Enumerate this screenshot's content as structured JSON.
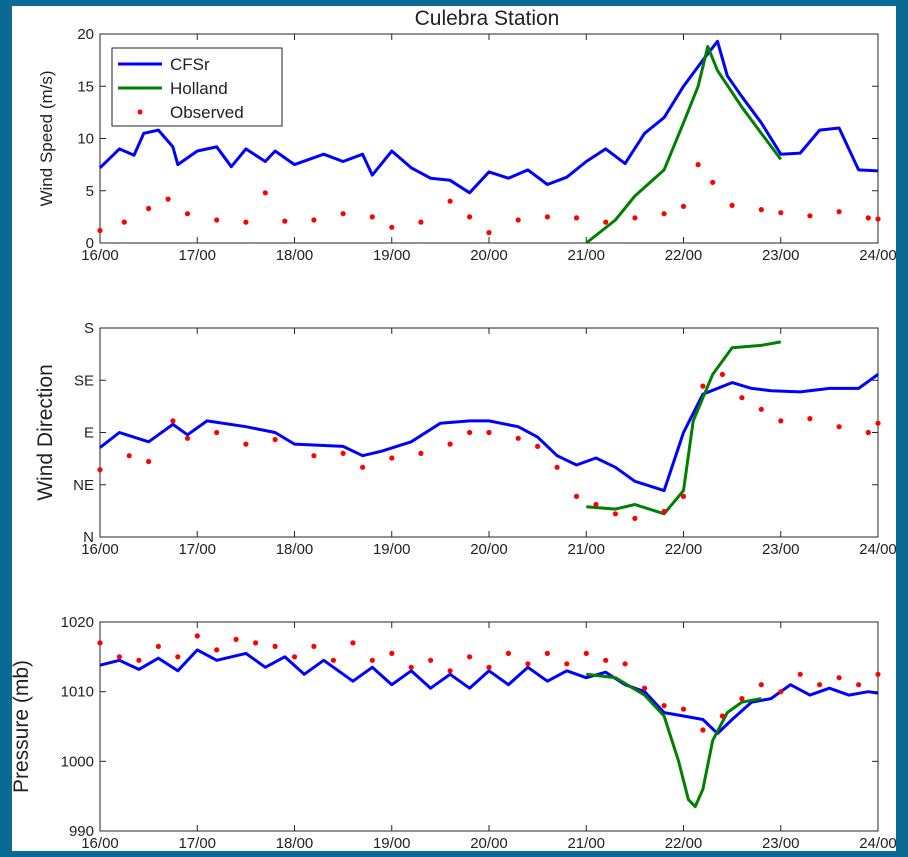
{
  "figure": {
    "title": "Culebra Station",
    "legend": [
      {
        "label": "CFSr",
        "color": "#0000ff",
        "style": "line"
      },
      {
        "label": "Holland",
        "color": "#007f00",
        "style": "line"
      },
      {
        "label": "Observed",
        "color": "#ff0000",
        "style": "dots"
      }
    ],
    "colors": {
      "cfsr": "#0000ff",
      "holland": "#007f00",
      "observed": "#ff0000",
      "background": "#0a6a94"
    }
  },
  "chart_data": [
    {
      "type": "line",
      "title": "Culebra Station",
      "ylabel": "Wind Speed (m/s)",
      "xlim": [
        16,
        24
      ],
      "ylim": [
        0,
        20
      ],
      "xticks": [
        "16/00",
        "17/00",
        "18/00",
        "19/00",
        "20/00",
        "21/00",
        "22/00",
        "23/00",
        "24/00"
      ],
      "yticks": [
        "0",
        "5",
        "10",
        "15",
        "20"
      ],
      "legend_position": "top-left",
      "series": [
        {
          "name": "CFSr",
          "style": "line",
          "x": [
            16.0,
            16.2,
            16.35,
            16.45,
            16.6,
            16.75,
            16.8,
            17.0,
            17.2,
            17.35,
            17.5,
            17.7,
            17.8,
            18.0,
            18.3,
            18.5,
            18.7,
            18.8,
            19.0,
            19.2,
            19.4,
            19.6,
            19.8,
            20.0,
            20.2,
            20.4,
            20.6,
            20.8,
            21.0,
            21.2,
            21.4,
            21.6,
            21.8,
            22.0,
            22.2,
            22.35,
            22.45,
            22.6,
            22.8,
            23.0,
            23.2,
            23.4,
            23.6,
            23.8,
            24.0
          ],
          "y": [
            7.2,
            9.0,
            8.4,
            10.5,
            10.8,
            9.2,
            7.5,
            8.8,
            9.2,
            7.3,
            9.0,
            7.8,
            8.8,
            7.5,
            8.5,
            7.8,
            8.5,
            6.5,
            8.8,
            7.2,
            6.2,
            6.0,
            4.8,
            6.8,
            6.2,
            7.0,
            5.6,
            6.3,
            7.8,
            9.0,
            7.6,
            10.5,
            12.0,
            15.0,
            17.5,
            19.3,
            16.0,
            14.0,
            11.5,
            8.5,
            8.6,
            10.8,
            11.0,
            7.0,
            6.9
          ]
        },
        {
          "name": "Holland",
          "style": "line",
          "x": [
            21.0,
            21.3,
            21.5,
            21.8,
            22.0,
            22.15,
            22.25,
            22.35,
            22.6,
            22.8,
            23.0
          ],
          "y": [
            0.0,
            2.2,
            4.5,
            7.0,
            11.5,
            15.0,
            18.8,
            16.5,
            13.0,
            10.5,
            8.0
          ]
        },
        {
          "name": "Observed",
          "style": "dots",
          "x": [
            16.0,
            16.25,
            16.5,
            16.7,
            16.9,
            17.2,
            17.5,
            17.7,
            17.9,
            18.2,
            18.5,
            18.8,
            19.0,
            19.3,
            19.6,
            19.8,
            20.0,
            20.3,
            20.6,
            20.9,
            21.2,
            21.5,
            21.8,
            22.0,
            22.15,
            22.3,
            22.5,
            22.8,
            23.0,
            23.3,
            23.6,
            23.9,
            24.0
          ],
          "y": [
            1.2,
            2.0,
            3.3,
            4.2,
            2.8,
            2.2,
            2.0,
            4.8,
            2.1,
            2.2,
            2.8,
            2.5,
            1.5,
            2.0,
            4.0,
            2.5,
            1.0,
            2.2,
            2.5,
            2.4,
            2.0,
            2.4,
            2.8,
            3.5,
            7.5,
            5.8,
            3.6,
            3.2,
            2.9,
            2.6,
            3.0,
            2.4,
            2.3
          ]
        }
      ]
    },
    {
      "type": "line",
      "ylabel": "Wind Direction",
      "xlim": [
        16,
        24
      ],
      "ylim": [
        0,
        180
      ],
      "xticks": [
        "16/00",
        "17/00",
        "18/00",
        "19/00",
        "20/00",
        "21/00",
        "22/00",
        "23/00",
        "24/00"
      ],
      "yticks": [
        "N",
        "NE",
        "E",
        "SE",
        "S"
      ],
      "ytick_values": [
        0,
        45,
        90,
        135,
        180
      ],
      "series": [
        {
          "name": "CFSr",
          "style": "line",
          "x": [
            16.0,
            16.2,
            16.5,
            16.75,
            16.9,
            17.1,
            17.5,
            17.8,
            18.0,
            18.5,
            18.7,
            18.9,
            19.2,
            19.5,
            19.8,
            20.0,
            20.3,
            20.5,
            20.7,
            20.9,
            21.1,
            21.3,
            21.5,
            21.8,
            22.0,
            22.2,
            22.5,
            22.7,
            22.9,
            23.2,
            23.5,
            23.8,
            24.0
          ],
          "y": [
            77,
            90,
            82,
            97,
            88,
            100,
            95,
            90,
            80,
            78,
            70,
            74,
            82,
            98,
            100,
            100,
            95,
            86,
            70,
            62,
            68,
            60,
            48,
            40,
            90,
            123,
            133,
            128,
            126,
            125,
            128,
            128,
            140
          ]
        },
        {
          "name": "Holland",
          "style": "line",
          "x": [
            21.0,
            21.3,
            21.5,
            21.8,
            22.0,
            22.1,
            22.3,
            22.5,
            22.8,
            23.0
          ],
          "y": [
            26,
            24,
            28,
            20,
            40,
            100,
            140,
            163,
            165,
            168
          ]
        },
        {
          "name": "Observed",
          "style": "dots",
          "x": [
            16.0,
            16.3,
            16.5,
            16.75,
            16.9,
            17.2,
            17.5,
            17.8,
            18.2,
            18.5,
            18.7,
            19.0,
            19.3,
            19.6,
            19.8,
            20.0,
            20.3,
            20.5,
            20.7,
            20.9,
            21.1,
            21.3,
            21.5,
            21.8,
            22.0,
            22.2,
            22.4,
            22.6,
            22.8,
            23.0,
            23.3,
            23.6,
            23.9,
            24.0
          ],
          "y": [
            58,
            70,
            65,
            100,
            85,
            90,
            80,
            84,
            70,
            72,
            60,
            68,
            72,
            80,
            90,
            90,
            85,
            78,
            60,
            35,
            28,
            20,
            16,
            22,
            35,
            130,
            140,
            120,
            110,
            100,
            102,
            95,
            90,
            98
          ]
        }
      ]
    },
    {
      "type": "line",
      "ylabel": "Pressure (mb)",
      "xlim": [
        16,
        24
      ],
      "ylim": [
        990,
        1020
      ],
      "xticks": [
        "16/00",
        "17/00",
        "18/00",
        "19/00",
        "20/00",
        "21/00",
        "22/00",
        "23/00",
        "24/00"
      ],
      "yticks": [
        "990",
        "1000",
        "1010",
        "1020"
      ],
      "series": [
        {
          "name": "CFSr",
          "style": "line",
          "x": [
            16.0,
            16.2,
            16.4,
            16.6,
            16.8,
            17.0,
            17.2,
            17.5,
            17.7,
            17.9,
            18.1,
            18.3,
            18.6,
            18.8,
            19.0,
            19.2,
            19.4,
            19.6,
            19.8,
            20.0,
            20.2,
            20.4,
            20.6,
            20.8,
            21.0,
            21.2,
            21.4,
            21.6,
            21.8,
            22.0,
            22.2,
            22.35,
            22.5,
            22.7,
            22.9,
            23.1,
            23.3,
            23.5,
            23.7,
            23.9,
            24.0
          ],
          "y": [
            1013.8,
            1014.5,
            1013.2,
            1014.8,
            1013.0,
            1016.0,
            1014.5,
            1015.5,
            1013.5,
            1015.0,
            1012.5,
            1014.5,
            1011.5,
            1013.5,
            1011.0,
            1013.0,
            1010.5,
            1012.5,
            1010.5,
            1013.0,
            1011.0,
            1013.5,
            1011.5,
            1013.0,
            1012.0,
            1012.8,
            1011.0,
            1010.0,
            1007.0,
            1006.5,
            1006.0,
            1004.0,
            1006.0,
            1008.5,
            1009.0,
            1011.0,
            1009.5,
            1010.5,
            1009.5,
            1010.0,
            1009.8
          ]
        },
        {
          "name": "Holland",
          "style": "line",
          "x": [
            21.0,
            21.3,
            21.6,
            21.8,
            21.95,
            22.05,
            22.12,
            22.2,
            22.3,
            22.45,
            22.6,
            22.8
          ],
          "y": [
            1012.5,
            1012.0,
            1009.5,
            1006.5,
            1000.0,
            994.5,
            993.5,
            996.0,
            1003.0,
            1007.0,
            1008.5,
            1009.0
          ]
        },
        {
          "name": "Observed",
          "style": "dots",
          "x": [
            16.0,
            16.2,
            16.4,
            16.6,
            16.8,
            17.0,
            17.2,
            17.4,
            17.6,
            17.8,
            18.0,
            18.2,
            18.4,
            18.6,
            18.8,
            19.0,
            19.2,
            19.4,
            19.6,
            19.8,
            20.0,
            20.2,
            20.4,
            20.6,
            20.8,
            21.0,
            21.2,
            21.4,
            21.6,
            21.8,
            22.0,
            22.2,
            22.4,
            22.6,
            22.8,
            23.0,
            23.2,
            23.4,
            23.6,
            23.8,
            24.0
          ],
          "y": [
            1017.0,
            1015.0,
            1014.5,
            1016.5,
            1015.0,
            1018.0,
            1016.0,
            1017.5,
            1017.0,
            1016.5,
            1015.0,
            1016.5,
            1014.5,
            1017.0,
            1014.5,
            1015.5,
            1013.5,
            1014.5,
            1013.0,
            1015.0,
            1013.5,
            1015.5,
            1014.0,
            1015.5,
            1014.0,
            1015.5,
            1014.5,
            1014.0,
            1010.5,
            1008.0,
            1007.5,
            1004.5,
            1006.5,
            1009.0,
            1011.0,
            1010.0,
            1012.5,
            1011.0,
            1012.0,
            1011.0,
            1012.5
          ]
        }
      ]
    }
  ]
}
